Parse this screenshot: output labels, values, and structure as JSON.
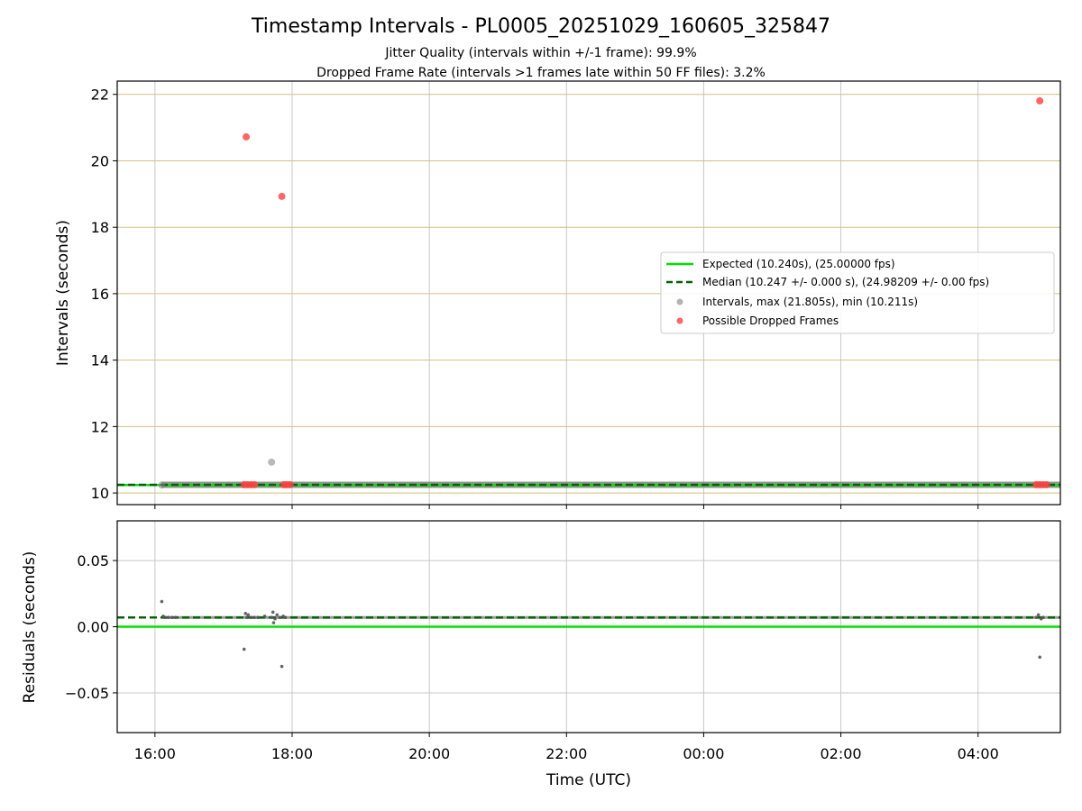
{
  "chart_data": [
    {
      "type": "scatter",
      "panel": "intervals",
      "title": "Timestamp Intervals - PL0005_20251029_160605_325847",
      "subtitles": [
        "Jitter Quality (intervals within +/-1 frame): 99.9%",
        "Dropped Frame Rate (intervals >1 frames late within 50 FF files): 3.2%"
      ],
      "ylabel": "Intervals (seconds)",
      "ylim": [
        9.65,
        22.4
      ],
      "yticks": [
        10,
        12,
        14,
        16,
        18,
        20,
        22
      ],
      "ytick_labels": [
        "10",
        "12",
        "14",
        "16",
        "18",
        "20",
        "22"
      ],
      "xlim_hours": [
        15.45,
        29.2
      ],
      "grid": true,
      "legend_position": "center-right",
      "colors": {
        "expected": "#00e000",
        "median": "#006400",
        "interval": "#808080",
        "dropped": "#ff4040",
        "hgrid": "#d4c080",
        "vgrid": "#c8c8c8"
      },
      "series": [
        {
          "name": "Expected (10.240s), (25.00000 fps)",
          "kind": "hline",
          "value": 10.24
        },
        {
          "name": "Median (10.247 +/- 0.000 s), (24.98209 +/- 0.00 fps)",
          "kind": "hline-dashed",
          "value": 10.247
        },
        {
          "name": "Intervals, max (21.805s), min (10.211s)",
          "kind": "points",
          "segment_start": 16.1,
          "segment_end": 29.2,
          "segment_value": 10.247,
          "points": [
            {
              "x": 16.1,
              "y": 10.24
            },
            {
              "x": 17.7,
              "y": 10.93
            }
          ]
        },
        {
          "name": "Possible Dropped Frames",
          "kind": "points",
          "points": [
            {
              "x": 17.33,
              "y": 20.72
            },
            {
              "x": 17.85,
              "y": 18.93
            },
            {
              "x": 28.9,
              "y": 21.805
            },
            {
              "x": 17.3,
              "y": 10.25
            },
            {
              "x": 17.35,
              "y": 10.25
            },
            {
              "x": 17.4,
              "y": 10.25
            },
            {
              "x": 17.45,
              "y": 10.25
            },
            {
              "x": 17.88,
              "y": 10.25
            },
            {
              "x": 17.92,
              "y": 10.25
            },
            {
              "x": 17.97,
              "y": 10.25
            },
            {
              "x": 28.85,
              "y": 10.25
            },
            {
              "x": 28.9,
              "y": 10.25
            },
            {
              "x": 28.95,
              "y": 10.25
            },
            {
              "x": 29.0,
              "y": 10.25
            }
          ]
        }
      ]
    },
    {
      "type": "scatter",
      "panel": "residuals",
      "xlabel": "Time (UTC)",
      "ylabel": "Residuals (seconds)",
      "ylim": [
        -0.08,
        0.08
      ],
      "yticks": [
        -0.05,
        0.0,
        0.05
      ],
      "ytick_labels": [
        "−0.05",
        "0.00",
        "0.05"
      ],
      "xlim_hours": [
        15.45,
        29.2
      ],
      "xticks_hours": [
        16,
        18,
        20,
        22,
        24,
        26,
        28
      ],
      "xtick_labels": [
        "16:00",
        "18:00",
        "20:00",
        "22:00",
        "00:00",
        "02:00",
        "04:00"
      ],
      "grid": true,
      "expected_residual": 0.0,
      "median_residual": 0.007,
      "points": [
        {
          "x": 16.1,
          "y": 0.019
        },
        {
          "x": 16.12,
          "y": 0.008
        },
        {
          "x": 16.15,
          "y": 0.007
        },
        {
          "x": 16.2,
          "y": 0.007
        },
        {
          "x": 16.25,
          "y": 0.007
        },
        {
          "x": 16.3,
          "y": 0.007
        },
        {
          "x": 17.3,
          "y": -0.017
        },
        {
          "x": 17.32,
          "y": 0.01
        },
        {
          "x": 17.34,
          "y": 0.007
        },
        {
          "x": 17.36,
          "y": 0.009
        },
        {
          "x": 17.4,
          "y": 0.007
        },
        {
          "x": 17.45,
          "y": 0.007
        },
        {
          "x": 17.5,
          "y": 0.007
        },
        {
          "x": 17.6,
          "y": 0.008
        },
        {
          "x": 17.7,
          "y": 0.007
        },
        {
          "x": 17.72,
          "y": 0.011
        },
        {
          "x": 17.73,
          "y": 0.003
        },
        {
          "x": 17.75,
          "y": 0.006
        },
        {
          "x": 17.78,
          "y": 0.009
        },
        {
          "x": 17.82,
          "y": 0.007
        },
        {
          "x": 17.85,
          "y": -0.03
        },
        {
          "x": 17.87,
          "y": 0.008
        },
        {
          "x": 17.9,
          "y": 0.007
        },
        {
          "x": 28.85,
          "y": 0.007
        },
        {
          "x": 28.88,
          "y": 0.009
        },
        {
          "x": 28.9,
          "y": -0.023
        },
        {
          "x": 28.92,
          "y": 0.006
        },
        {
          "x": 28.95,
          "y": 0.007
        }
      ]
    }
  ]
}
